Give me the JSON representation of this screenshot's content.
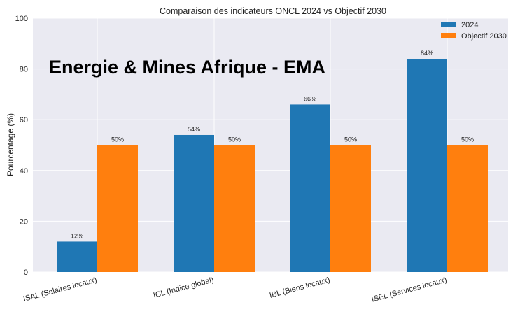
{
  "chart_data": {
    "type": "bar",
    "title": "Comparaison des indicateurs ONCL 2024 vs Objectif 2030",
    "watermark": "Energie & Mines Afrique - EMA",
    "xlabel": "",
    "ylabel": "Pourcentage (%)",
    "ylim": [
      0,
      100
    ],
    "yticks": [
      0,
      20,
      40,
      60,
      80,
      100
    ],
    "grid": true,
    "legend_position": "top-right",
    "categories": [
      "ISAL (Salaires locaux)",
      "ICL (Indice global)",
      "IBL (Biens locaux)",
      "ISEL (Services locaux)"
    ],
    "series": [
      {
        "name": "2024",
        "values": [
          12,
          54,
          66,
          84
        ],
        "labels": [
          "12%",
          "54%",
          "66%",
          "84%"
        ],
        "color": "#1f77b4"
      },
      {
        "name": "Objectif 2030",
        "values": [
          50,
          50,
          50,
          50
        ],
        "labels": [
          "50%",
          "50%",
          "50%",
          "50%"
        ],
        "color": "#ff7f0e"
      }
    ],
    "background": "#eaeaf2"
  }
}
